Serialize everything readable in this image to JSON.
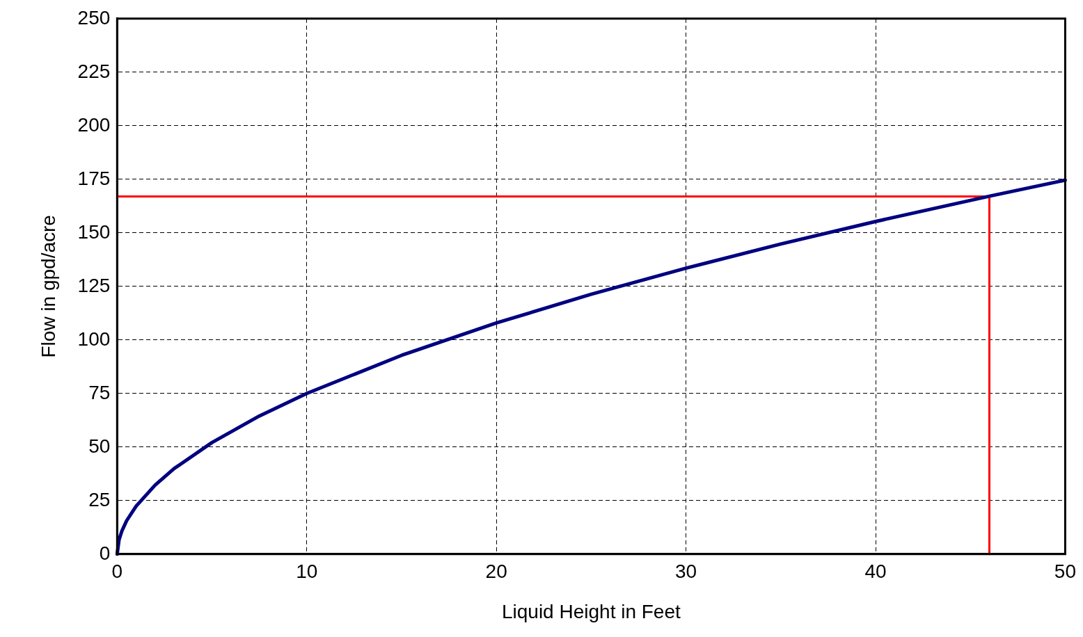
{
  "chart_data": {
    "type": "line",
    "xlabel": "Liquid Height in Feet",
    "ylabel": "Flow in gpd/acre",
    "xlim": [
      0,
      50
    ],
    "xticks": [
      0,
      10,
      20,
      30,
      40,
      50
    ],
    "ylim": [
      0,
      250
    ],
    "yticks": [
      0,
      25,
      50,
      75,
      100,
      125,
      150,
      175,
      200,
      225,
      250
    ],
    "grid": true,
    "legend": false,
    "marker": "none",
    "line_style": "solid",
    "series": [
      {
        "color": "#000080",
        "x": [
          0,
          0.1,
          0.25,
          0.5,
          1,
          2,
          3,
          5,
          7.5,
          10,
          15,
          20,
          25,
          30,
          35,
          40,
          46,
          50
        ],
        "values": [
          0,
          6.7,
          10.8,
          15.6,
          22.4,
          32.2,
          39.9,
          52.1,
          64.5,
          75,
          92.8,
          107.9,
          121.3,
          133.5,
          144.8,
          155.3,
          167.1,
          174.6
        ]
      },
      {
        "color": "#ff0000",
        "x": [
          0,
          46,
          46
        ],
        "values": [
          167,
          167,
          0
        ]
      }
    ]
  }
}
